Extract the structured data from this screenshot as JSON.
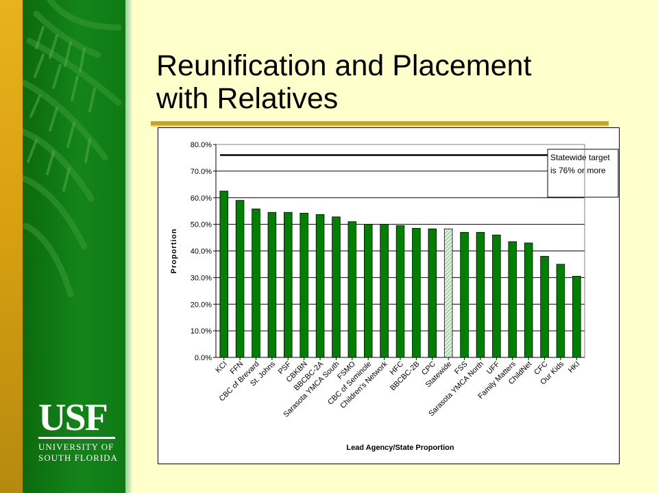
{
  "slide": {
    "title_line1": "Reunification and Placement",
    "title_line2": "with Relatives"
  },
  "logo": {
    "mark": "USF",
    "line1": "UNIVERSITY OF",
    "line2": "SOUTH FLORIDA"
  },
  "colors": {
    "bar": "#008000",
    "highlight_bar": "#dff0df",
    "target_line": "#000000",
    "green_panel": "#13841a",
    "gold_strip": "#d9a011",
    "background": "#ffffcc"
  },
  "chart_data": {
    "type": "bar",
    "title": "",
    "xlabel": "Lead Agency/State Proportion",
    "ylabel": "Proportion",
    "ylim": [
      0,
      80
    ],
    "yticks": [
      "0.0%",
      "10.0%",
      "20.0%",
      "30.0%",
      "40.0%",
      "50.0%",
      "60.0%",
      "70.0%",
      "80.0%"
    ],
    "grid": true,
    "categories": [
      "KCI",
      "FFN",
      "CBC of Brevard",
      "St. Johns",
      "PSF",
      "CBKBN",
      "BBCBC-2A",
      "Sarasota YMCA South",
      "FSMO",
      "CBC of Seminole",
      "Children's Network",
      "HFC",
      "BBCBC-2B",
      "CPC",
      "Statewide",
      "FSS",
      "Sarasota YMCA North",
      "UFF",
      "Family Matters",
      "ChildNet",
      "CFC",
      "Our Kids",
      "HKI"
    ],
    "values": [
      62.5,
      59.0,
      55.8,
      54.5,
      54.5,
      54.2,
      53.7,
      52.8,
      51.0,
      50.0,
      50.0,
      49.5,
      48.5,
      48.3,
      48.3,
      47.0,
      47.0,
      46.0,
      43.5,
      43.0,
      38.0,
      35.0,
      30.5
    ],
    "highlight_category": "Statewide",
    "target_value": 76,
    "annotation": [
      "Statewide target",
      "is 76% or more"
    ]
  }
}
